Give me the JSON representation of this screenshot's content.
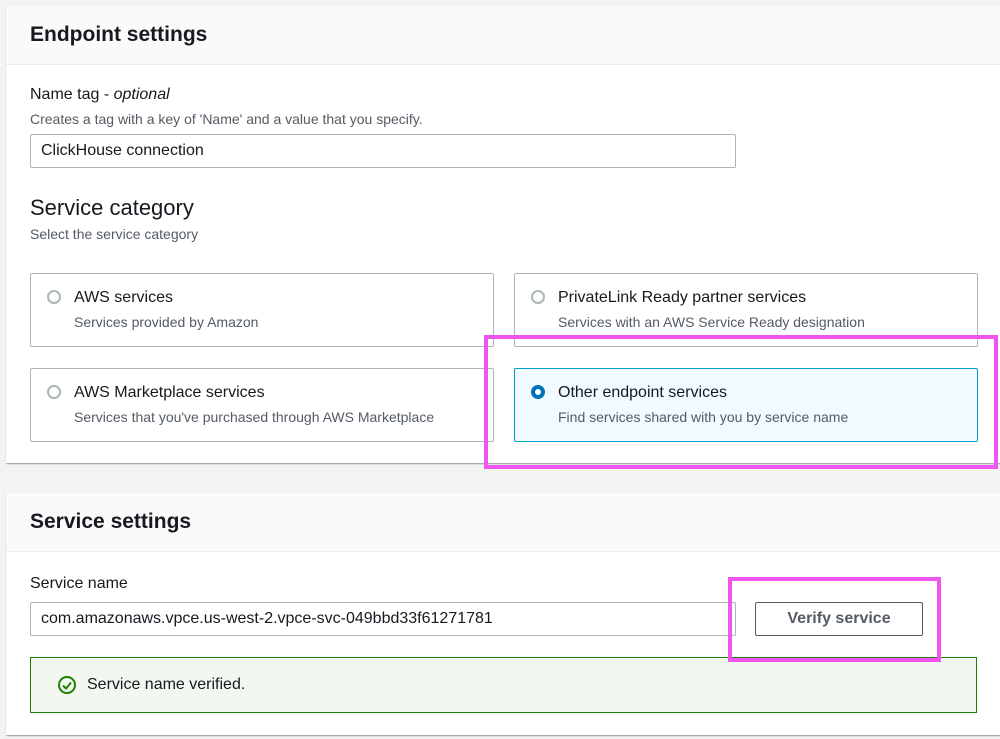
{
  "colors": {
    "accent": "#0073bb",
    "success": "#1d8102",
    "highlight": "#f254f2"
  },
  "endpoint_settings": {
    "title": "Endpoint settings",
    "name_tag": {
      "label": "Name tag - ",
      "label_optional": "optional",
      "description": "Creates a tag with a key of 'Name' and a value that you specify.",
      "value": "ClickHouse connection"
    },
    "service_category": {
      "title": "Service category",
      "description": "Select the service category",
      "options": [
        {
          "title": "AWS services",
          "description": "Services provided by Amazon",
          "selected": false
        },
        {
          "title": "PrivateLink Ready partner services",
          "description": "Services with an AWS Service Ready designation",
          "selected": false
        },
        {
          "title": "AWS Marketplace services",
          "description": "Services that you've purchased through AWS Marketplace",
          "selected": false
        },
        {
          "title": "Other endpoint services",
          "description": "Find services shared with you by service name",
          "selected": true
        }
      ]
    }
  },
  "service_settings": {
    "title": "Service settings",
    "service_name": {
      "label": "Service name",
      "value": "com.amazonaws.vpce.us-west-2.vpce-svc-049bbd33f61271781"
    },
    "verify_button": "Verify service",
    "status": {
      "icon": "check-circle-icon",
      "text": "Service name verified."
    }
  }
}
